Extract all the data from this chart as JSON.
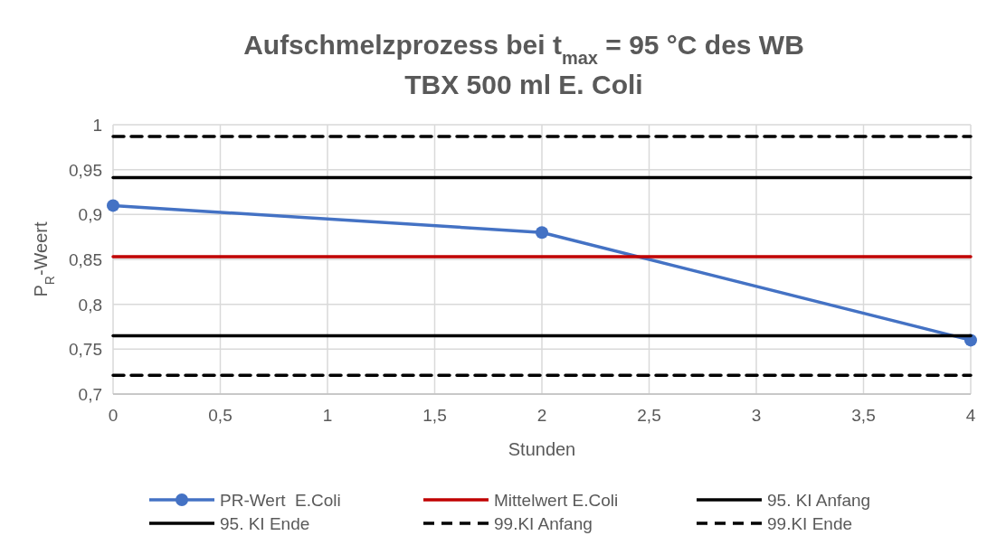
{
  "chart_data": {
    "type": "line",
    "title": "Aufschmelzprozess bei t$_{max}$ = 95 °C des WB\nTBX 500 ml  E. Coli",
    "xlabel": "Stunden",
    "ylabel": "P$_{R}$-Weert",
    "xlim": [
      0,
      4
    ],
    "xticks": [
      {
        "value": 0,
        "label": "0"
      },
      {
        "value": 0.5,
        "label": "0,5"
      },
      {
        "value": 1,
        "label": "1"
      },
      {
        "value": 1.5,
        "label": "1,5"
      },
      {
        "value": 2,
        "label": "2"
      },
      {
        "value": 2.5,
        "label": "2,5"
      },
      {
        "value": 3,
        "label": "3"
      },
      {
        "value": 3.5,
        "label": "3,5"
      },
      {
        "value": 4,
        "label": "4"
      }
    ],
    "ylim": [
      0.7,
      1
    ],
    "yticks": [
      {
        "value": 0.7,
        "label": "0,7"
      },
      {
        "value": 0.75,
        "label": "0,75"
      },
      {
        "value": 0.8,
        "label": "0,8"
      },
      {
        "value": 0.85,
        "label": "0,85"
      },
      {
        "value": 0.9,
        "label": "0,9"
      },
      {
        "value": 0.95,
        "label": "0,95"
      },
      {
        "value": 1,
        "label": "1"
      }
    ],
    "grid": true,
    "legend": "bottom",
    "series": [
      {
        "name": "PR-Wert  E.Coli",
        "color": "#4472c4",
        "x": [
          0,
          2,
          4
        ],
        "values": [
          0.91,
          0.88,
          0.76
        ],
        "marker": "circle",
        "line_style": "solid"
      },
      {
        "name": "Mittelwert E.Coli",
        "color": "#c00000",
        "x": [
          0,
          4
        ],
        "values": [
          0.853,
          0.853
        ],
        "marker": "none",
        "line_style": "solid"
      },
      {
        "name": "95. KI Anfang",
        "color": "#000000",
        "x": [
          0,
          4
        ],
        "values": [
          0.941,
          0.941
        ],
        "marker": "none",
        "line_style": "solid"
      },
      {
        "name": "95. KI Ende",
        "color": "#000000",
        "x": [
          0,
          4
        ],
        "values": [
          0.765,
          0.765
        ],
        "marker": "none",
        "line_style": "solid"
      },
      {
        "name": "99.KI Anfang",
        "color": "#000000",
        "x": [
          0,
          4
        ],
        "values": [
          0.987,
          0.987
        ],
        "marker": "none",
        "line_style": "dashed"
      },
      {
        "name": "99.KI Ende",
        "color": "#000000",
        "x": [
          0,
          4
        ],
        "values": [
          0.721,
          0.721
        ],
        "marker": "none",
        "line_style": "dashed"
      }
    ]
  }
}
